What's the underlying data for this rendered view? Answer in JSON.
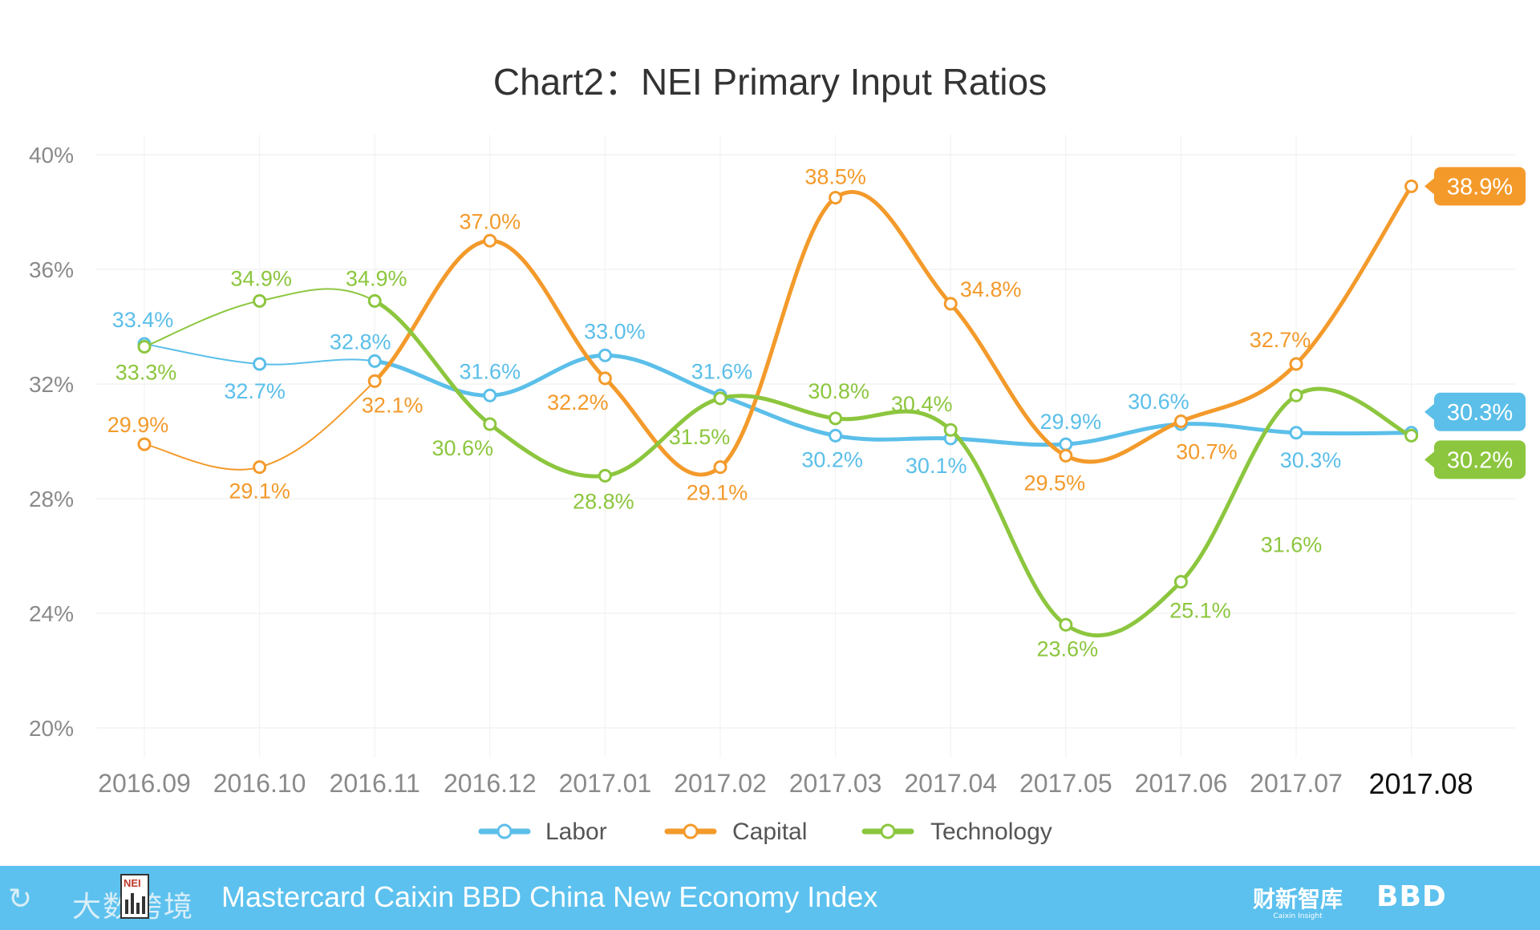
{
  "chart_data": {
    "type": "line",
    "title": "Chart2：NEI Primary Input Ratios",
    "categories": [
      "2016.09",
      "2016.10",
      "2016.11",
      "2016.12",
      "2017.01",
      "2017.02",
      "2017.03",
      "2017.04",
      "2017.05",
      "2017.06",
      "2017.07",
      "2017.08"
    ],
    "y_ticks": [
      "20%",
      "24%",
      "28%",
      "32%",
      "36%",
      "40%"
    ],
    "y_tick_values": [
      20,
      24,
      28,
      32,
      36,
      40
    ],
    "ylim": [
      20,
      40
    ],
    "xlabel": "",
    "ylabel": "",
    "grid": true,
    "legend_position": "bottom-center",
    "series": [
      {
        "name": "Labor",
        "color": "#5bbfe9",
        "values": [
          33.4,
          32.7,
          32.8,
          31.6,
          33.0,
          31.6,
          30.2,
          30.1,
          29.9,
          30.6,
          30.3,
          30.3
        ],
        "labels": [
          "33.4%",
          "32.7%",
          "32.8%",
          "31.6%",
          "33.0%",
          "31.6%",
          "30.2%",
          "30.1%",
          "29.9%",
          "30.6%",
          "30.3%",
          "30.3%"
        ]
      },
      {
        "name": "Capital",
        "color": "#f39a2b",
        "values": [
          29.9,
          29.1,
          32.1,
          37.0,
          32.2,
          29.1,
          38.5,
          34.8,
          29.5,
          30.7,
          32.7,
          38.9
        ],
        "labels": [
          "29.9%",
          "29.1%",
          "32.1%",
          "37.0%",
          "32.2%",
          "29.1%",
          "38.5%",
          "34.8%",
          "29.5%",
          "30.7%",
          "32.7%",
          "38.9%"
        ]
      },
      {
        "name": "Technology",
        "color": "#8cc63e",
        "values": [
          33.3,
          34.9,
          34.9,
          30.6,
          28.8,
          31.5,
          30.8,
          30.4,
          23.6,
          25.1,
          31.6,
          30.2
        ],
        "labels": [
          "33.3%",
          "34.9%",
          "34.9%",
          "30.6%",
          "28.8%",
          "31.5%",
          "30.8%",
          "30.4%",
          "23.6%",
          "25.1%",
          "31.6%",
          "30.2%"
        ]
      }
    ]
  },
  "footer": {
    "watermark": "大数跨境",
    "badge": "NEI",
    "index_name": "Mastercard Caixin BBD China New Economy Index",
    "logo_caixin": "财新智库",
    "logo_caixin_sub": "Caixin Insight",
    "logo_bbd": "BBD",
    "colors": {
      "bar": "#5cc1ee"
    }
  }
}
